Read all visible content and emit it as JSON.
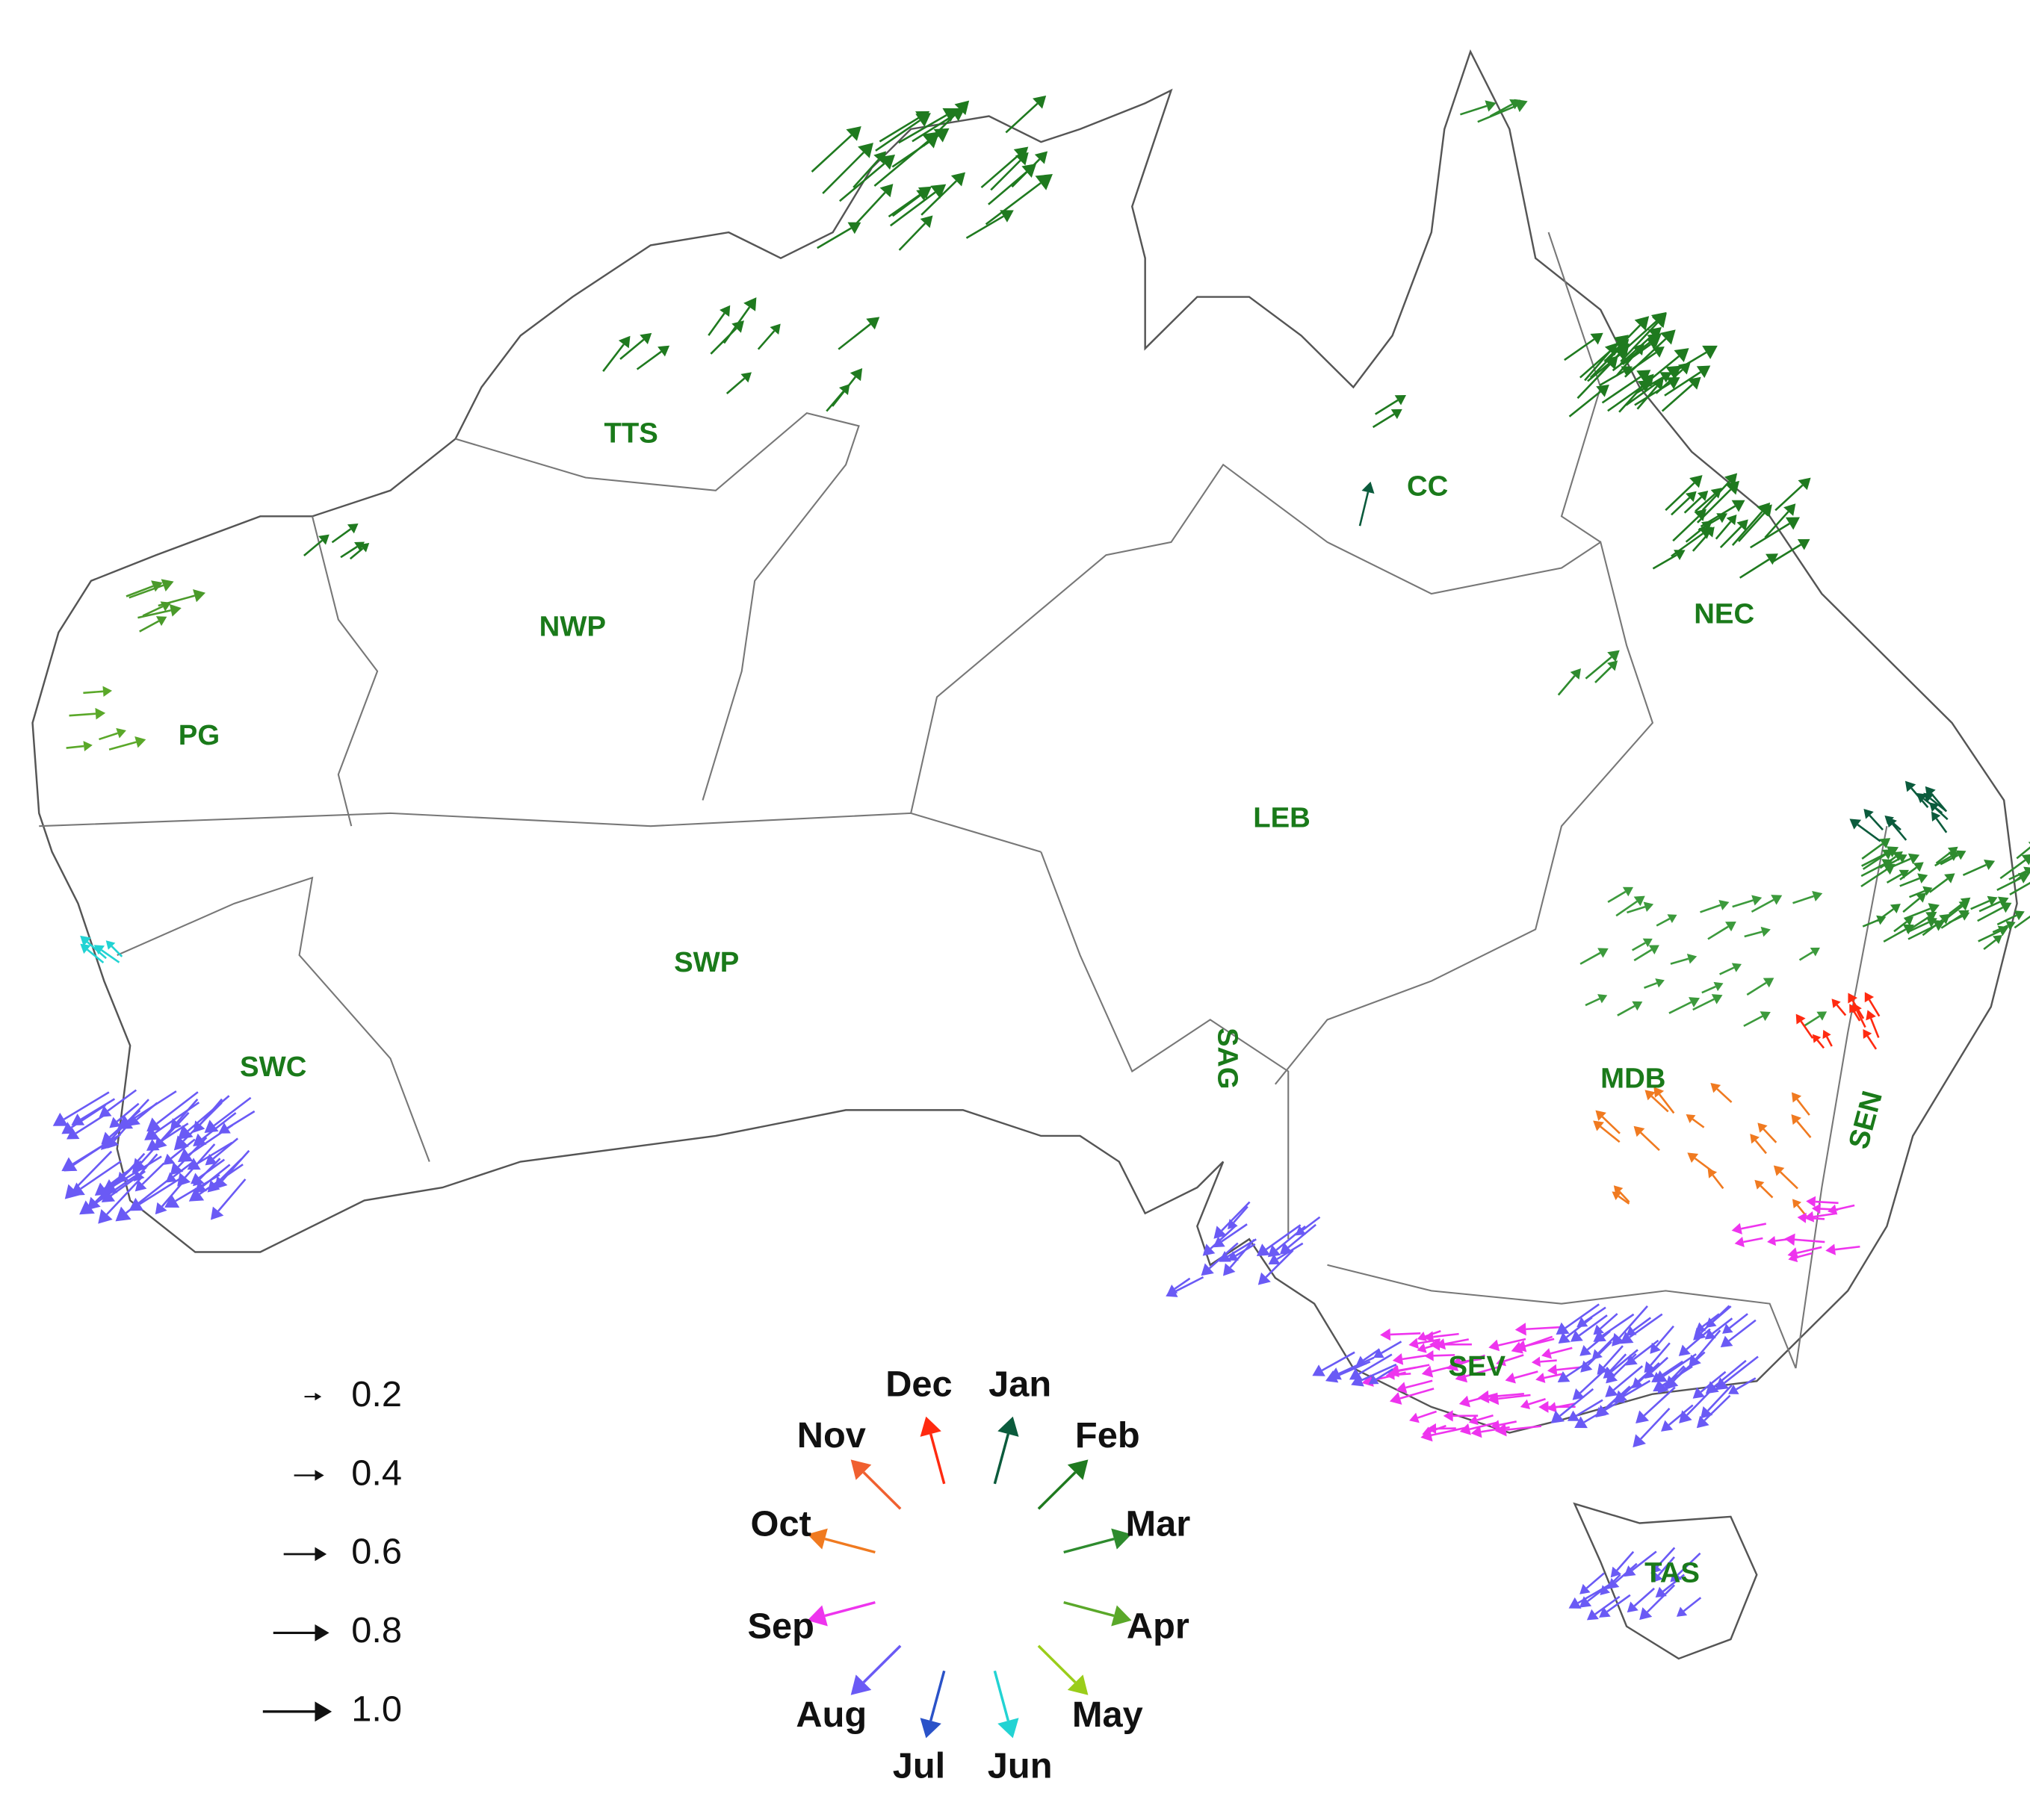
{
  "regions": [
    {
      "label": "TTS"
    },
    {
      "label": "CC"
    },
    {
      "label": "NWP"
    },
    {
      "label": "NEC"
    },
    {
      "label": "PG"
    },
    {
      "label": "LEB"
    },
    {
      "label": "SWP"
    },
    {
      "label": "SAG"
    },
    {
      "label": "SWC"
    },
    {
      "label": "MDB"
    },
    {
      "label": "SEN"
    },
    {
      "label": "SEV"
    },
    {
      "label": "TAS"
    }
  ],
  "legend": {
    "sizes": [
      0.2,
      0.4,
      0.6,
      0.8,
      {
        "value": 1,
        "label": "1.0"
      }
    ]
  },
  "months": [
    {
      "label": "Jan",
      "color": "#0b5b3c"
    },
    {
      "label": "Feb",
      "color": "#1f7a1f"
    },
    {
      "label": "Mar",
      "color": "#2e8b2e"
    },
    {
      "label": "Apr",
      "color": "#5aa829"
    },
    {
      "label": "May",
      "color": "#9acd1a"
    },
    {
      "label": "Jun",
      "color": "#22d3d3"
    },
    {
      "label": "Jul",
      "color": "#2a52c8"
    },
    {
      "label": "Aug",
      "color": "#6a5af5"
    },
    {
      "label": "Sep",
      "color": "#ee34ee"
    },
    {
      "label": "Oct",
      "color": "#f07a20"
    },
    {
      "label": "Nov",
      "color": "#f06030"
    },
    {
      "label": "Dec",
      "color": "#ff2a10"
    }
  ]
}
